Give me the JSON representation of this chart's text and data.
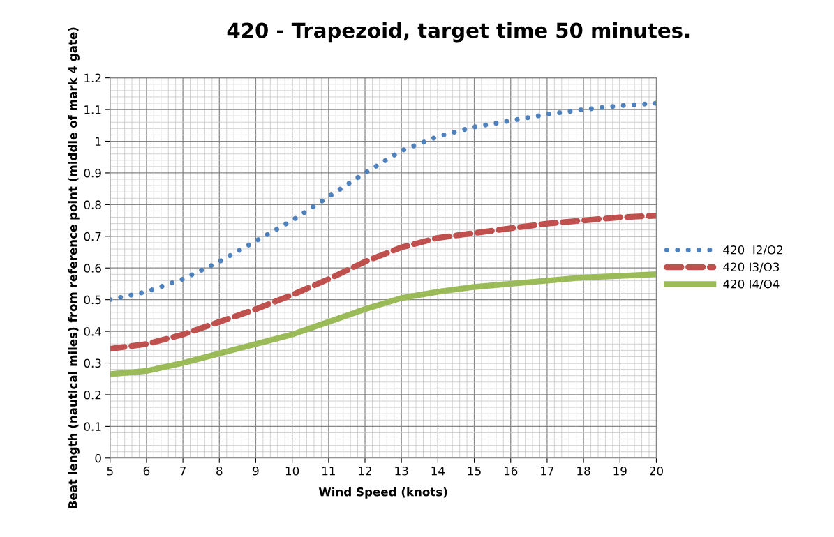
{
  "chart_data": {
    "type": "line",
    "title": "420 - Trapezoid, target time 50 minutes.",
    "xlabel": "Wind Speed (knots)",
    "ylabel": "Beat length (nautical miles) from reference point (middle of mark 4 gate)",
    "x": [
      5,
      6,
      7,
      8,
      9,
      10,
      11,
      12,
      13,
      14,
      15,
      16,
      17,
      18,
      19,
      20
    ],
    "series": [
      {
        "name": "420  I2/O2",
        "color": "#4f81bd",
        "line_style": "dotted",
        "values": [
          0.5,
          0.525,
          0.565,
          0.62,
          0.685,
          0.75,
          0.825,
          0.9,
          0.97,
          1.015,
          1.045,
          1.065,
          1.085,
          1.1,
          1.112,
          1.12
        ]
      },
      {
        "name": "420 I3/O3",
        "color": "#c0504d",
        "line_style": "dashed",
        "values": [
          0.345,
          0.36,
          0.39,
          0.43,
          0.47,
          0.515,
          0.565,
          0.62,
          0.665,
          0.695,
          0.71,
          0.725,
          0.74,
          0.75,
          0.76,
          0.765
        ]
      },
      {
        "name": "420 I4/O4",
        "color": "#9bbb59",
        "line_style": "solid",
        "values": [
          0.265,
          0.275,
          0.3,
          0.33,
          0.36,
          0.39,
          0.43,
          0.47,
          0.505,
          0.525,
          0.54,
          0.55,
          0.56,
          0.57,
          0.575,
          0.58
        ]
      }
    ],
    "xlim": [
      5,
      20
    ],
    "xticks": [
      5,
      6,
      7,
      8,
      9,
      10,
      11,
      12,
      13,
      14,
      15,
      16,
      17,
      18,
      19,
      20
    ],
    "ylim": [
      0,
      1.2
    ],
    "yticks": [
      0,
      0.1,
      0.2,
      0.3,
      0.4,
      0.5,
      0.6,
      0.7,
      0.8,
      0.9,
      1,
      1.1,
      1.2
    ],
    "grid": true,
    "legend": "right",
    "marker": "none"
  }
}
